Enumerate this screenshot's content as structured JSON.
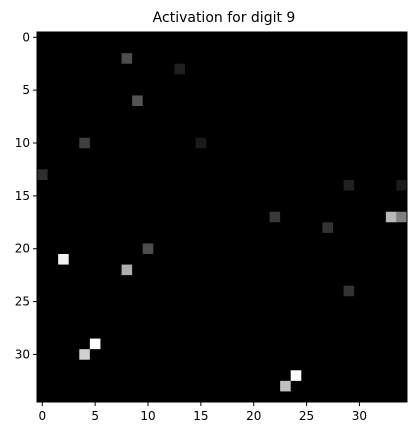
{
  "chart_data": {
    "type": "heatmap",
    "title": "Activation for digit 9",
    "xlabel": "",
    "ylabel": "",
    "grid_size": 35,
    "xlim": [
      -0.5,
      34.5
    ],
    "ylim": [
      34.5,
      -0.5
    ],
    "x_ticks": [
      0,
      5,
      10,
      15,
      20,
      25,
      30
    ],
    "y_ticks": [
      0,
      5,
      10,
      15,
      20,
      25,
      30
    ],
    "x_tick_labels": [
      "0",
      "5",
      "10",
      "15",
      "20",
      "25",
      "30"
    ],
    "y_tick_labels": [
      "0",
      "5",
      "10",
      "15",
      "20",
      "25",
      "30"
    ],
    "colormap": "gray",
    "background_value": 0,
    "grid": false,
    "cells": [
      {
        "x": 8,
        "y": 2,
        "value": 0.3
      },
      {
        "x": 13,
        "y": 3,
        "value": 0.12
      },
      {
        "x": 9,
        "y": 6,
        "value": 0.33
      },
      {
        "x": 4,
        "y": 10,
        "value": 0.25
      },
      {
        "x": 15,
        "y": 10,
        "value": 0.1
      },
      {
        "x": 0,
        "y": 13,
        "value": 0.18
      },
      {
        "x": 29,
        "y": 14,
        "value": 0.13
      },
      {
        "x": 34,
        "y": 14,
        "value": 0.1
      },
      {
        "x": 22,
        "y": 17,
        "value": 0.22
      },
      {
        "x": 33,
        "y": 17,
        "value": 0.72
      },
      {
        "x": 34,
        "y": 17,
        "value": 0.5
      },
      {
        "x": 27,
        "y": 18,
        "value": 0.2
      },
      {
        "x": 10,
        "y": 20,
        "value": 0.3
      },
      {
        "x": 2,
        "y": 21,
        "value": 0.95
      },
      {
        "x": 8,
        "y": 22,
        "value": 0.68
      },
      {
        "x": 29,
        "y": 24,
        "value": 0.2
      },
      {
        "x": 5,
        "y": 29,
        "value": 1.0
      },
      {
        "x": 4,
        "y": 30,
        "value": 0.82
      },
      {
        "x": 24,
        "y": 32,
        "value": 1.0
      },
      {
        "x": 23,
        "y": 33,
        "value": 0.75
      }
    ]
  }
}
